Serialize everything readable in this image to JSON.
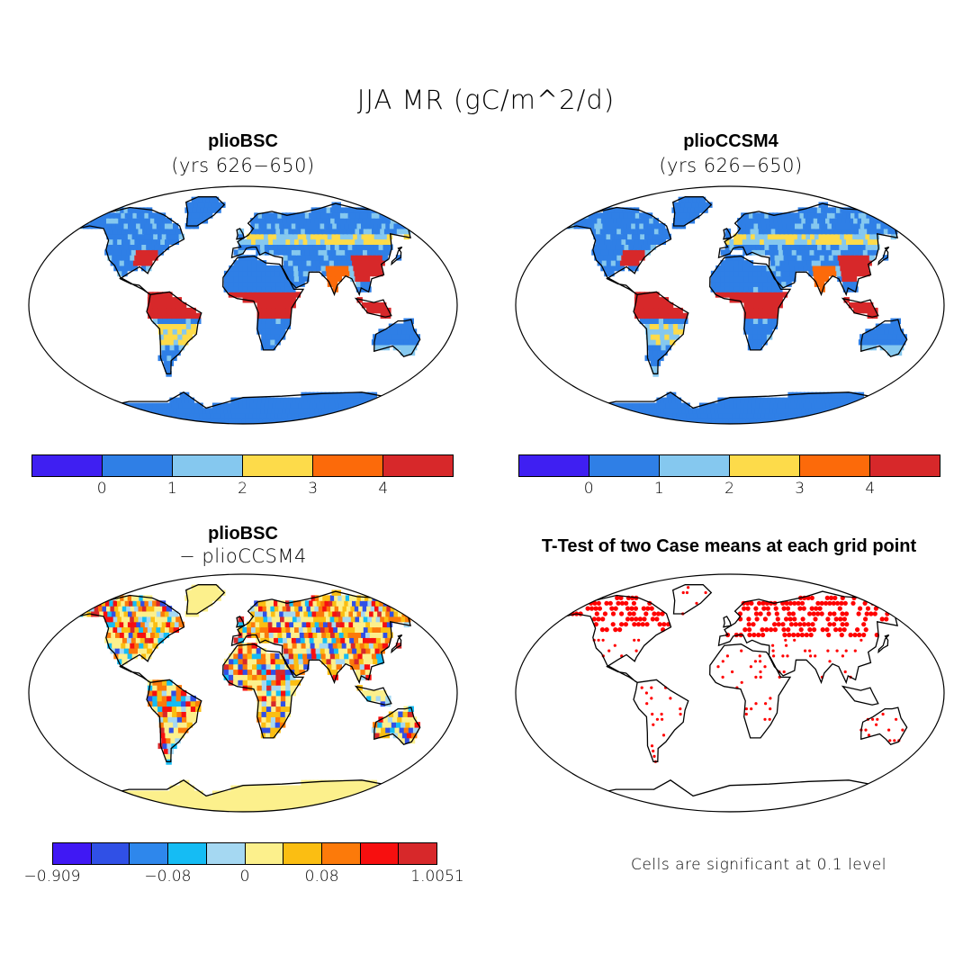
{
  "figure": {
    "title": "JJA MR (gC/m^2/d)"
  },
  "panels": [
    {
      "id": "plioBSC",
      "title": "plioBSC",
      "subtitle": "(yrs 626−650)"
    },
    {
      "id": "plioCCSM4",
      "title": "plioCCSM4",
      "subtitle": "(yrs 626−650)"
    },
    {
      "id": "diff",
      "title": "plioBSC",
      "subtitle": "− plioCCSM4"
    },
    {
      "id": "ttest",
      "title": "T-Test of two Case means at each grid point",
      "subtitle": ""
    }
  ],
  "colorbars": {
    "absolute": {
      "colors": [
        "#3f1ff2",
        "#2f7fe6",
        "#85c8ef",
        "#fddb4a",
        "#fc6a0a",
        "#d7282a"
      ],
      "ticks": [
        "0",
        "1",
        "2",
        "3",
        "4"
      ]
    },
    "difference": {
      "colors": [
        "#4018f4",
        "#3050e6",
        "#2e87ec",
        "#15bcf4",
        "#a5d8f2",
        "#fcf08c",
        "#fbbe12",
        "#fc7a0a",
        "#f70f0f",
        "#d7282a"
      ],
      "ticks": [
        "−0.909",
        "−0.08",
        "0",
        "0.08",
        "1.0051"
      ]
    }
  },
  "ttest": {
    "note": "Cells are significant at 0.1 level",
    "marker_color": "#ff0000"
  },
  "map": {
    "land_outline_color": "#000000",
    "ocean_color": "#ffffff"
  }
}
